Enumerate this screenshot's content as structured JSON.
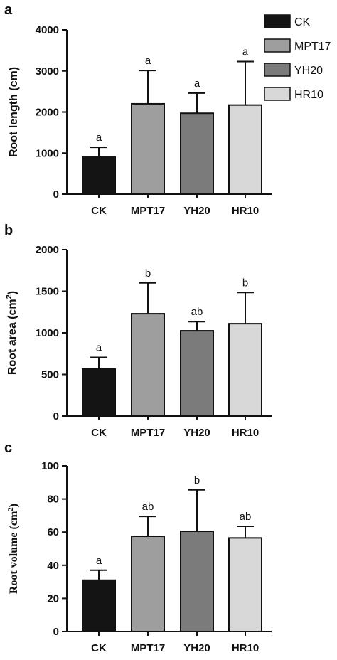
{
  "legend": [
    {
      "name": "CK",
      "color": "#141414"
    },
    {
      "name": "MPT17",
      "color": "#9e9e9e"
    },
    {
      "name": "YH20",
      "color": "#7b7b7b"
    },
    {
      "name": "HR10",
      "color": "#d8d8d8"
    }
  ],
  "chart_data": [
    {
      "type": "bar",
      "panel": "a",
      "categories": [
        "CK",
        "MPT17",
        "YH20",
        "HR10"
      ],
      "values": [
        900,
        2200,
        1970,
        2170
      ],
      "errors": [
        240,
        810,
        490,
        1060
      ],
      "significance": [
        "a",
        "a",
        "a",
        "a"
      ],
      "ylabel": "Root length (cm)",
      "ylim": [
        0,
        4000
      ],
      "yticks": [
        0,
        1000,
        2000,
        3000,
        4000
      ],
      "colors": [
        "#141414",
        "#9e9e9e",
        "#7b7b7b",
        "#d8d8d8"
      ],
      "legend": "top-right"
    },
    {
      "type": "bar",
      "panel": "b",
      "categories": [
        "CK",
        "MPT17",
        "YH20",
        "HR10"
      ],
      "values": [
        565,
        1230,
        1025,
        1110
      ],
      "errors": [
        140,
        370,
        110,
        375
      ],
      "significance": [
        "a",
        "b",
        "ab",
        "b"
      ],
      "ylabel": "Root area (cm",
      "ylabel_superscript": "2",
      "ylabel_suffix": ")",
      "ylim": [
        0,
        2000
      ],
      "yticks": [
        0,
        500,
        1000,
        1500,
        2000
      ],
      "colors": [
        "#141414",
        "#9e9e9e",
        "#7b7b7b",
        "#d8d8d8"
      ]
    },
    {
      "type": "bar",
      "panel": "c",
      "categories": [
        "CK",
        "MPT17",
        "YH20",
        "HR10"
      ],
      "values": [
        31,
        57.5,
        60.5,
        56.5
      ],
      "errors": [
        6,
        12,
        25,
        7
      ],
      "significance": [
        "a",
        "ab",
        "b",
        "ab"
      ],
      "ylabel": "Root volume (cm",
      "ylabel_superscript": "2",
      "ylabel_suffix": ")",
      "ylim": [
        0,
        100
      ],
      "yticks": [
        0,
        20,
        40,
        60,
        80,
        100
      ],
      "colors": [
        "#141414",
        "#9e9e9e",
        "#7b7b7b",
        "#d8d8d8"
      ]
    }
  ]
}
